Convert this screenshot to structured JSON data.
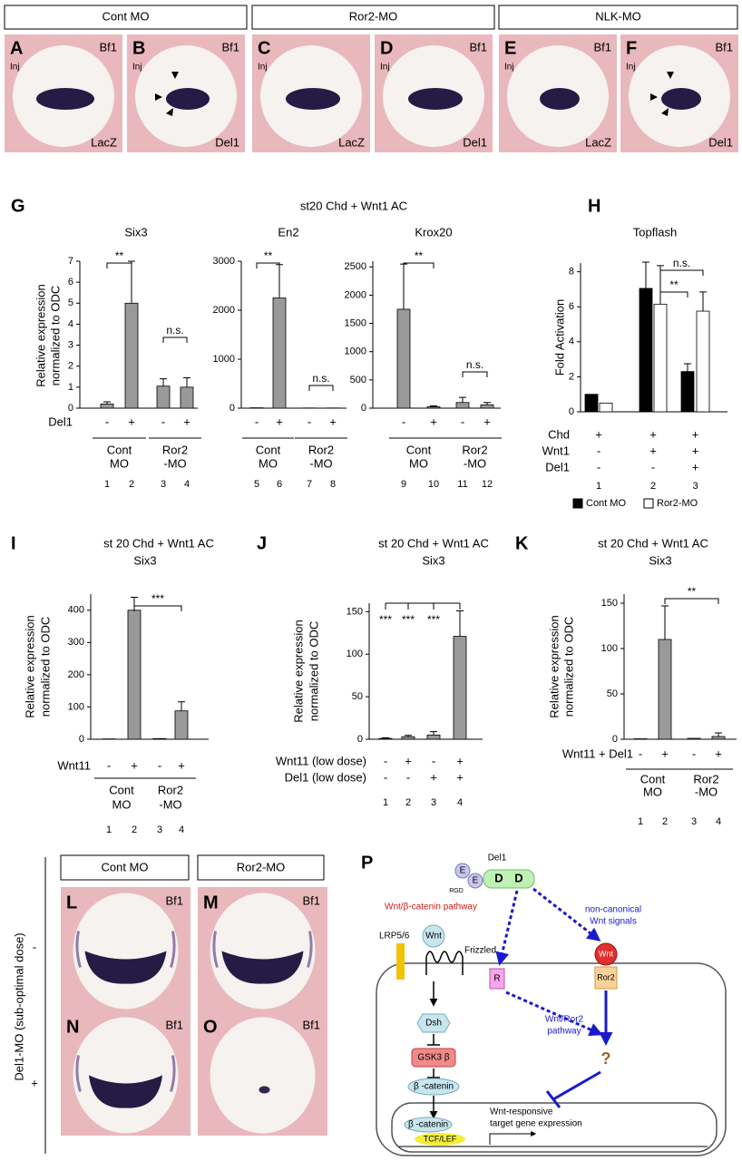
{
  "top_row": {
    "headers": [
      "Cont MO",
      "Ror2-MO",
      "NLK-MO"
    ],
    "panels": [
      {
        "letter": "A",
        "stain": "Bf1",
        "inj": "Inj",
        "probe": "LacZ"
      },
      {
        "letter": "B",
        "stain": "Bf1",
        "inj": "Inj",
        "probe": "Del1"
      },
      {
        "letter": "C",
        "inj": "Inj",
        "probe": "LacZ"
      },
      {
        "letter": "D",
        "stain": "Bf1",
        "inj": "Inj",
        "probe": "Del1"
      },
      {
        "letter": "E",
        "stain": "Bf1",
        "inj": "Inj",
        "probe": "LacZ"
      },
      {
        "letter": "F",
        "stain": "Bf1",
        "inj": "Inj",
        "probe": "Del1"
      }
    ]
  },
  "panel_g_title": "st20 Chd + Wnt1 AC",
  "chart_data": [
    {
      "type": "bar",
      "letter": "G",
      "title": "Six3",
      "ylabel": [
        "Relative expression",
        "normalized to ODC"
      ],
      "ylim": [
        0,
        7
      ],
      "yticks": [
        0,
        1,
        2,
        3,
        4,
        5,
        6,
        7
      ],
      "series": [
        {
          "color": "#999999",
          "values": [
            0.2,
            5,
            1.05,
            1
          ],
          "errors": [
            0.1,
            2,
            0.35,
            0.45
          ]
        }
      ],
      "rows": [
        {
          "label": "Del1",
          "signs": [
            "-",
            "+",
            "-",
            "+"
          ]
        }
      ],
      "groups": [
        [
          "Cont",
          "MO"
        ],
        [
          "Ror2",
          "-MO"
        ]
      ],
      "lanes": [
        1,
        2,
        3,
        4
      ],
      "significance": [
        "**",
        "n.s."
      ]
    },
    {
      "type": "bar",
      "title": "En2",
      "ylim": [
        0,
        3000
      ],
      "yticks": [
        0,
        1000,
        2000,
        3000
      ],
      "series": [
        {
          "color": "#999999",
          "values": [
            8,
            2250,
            4,
            4
          ],
          "errors": [
            0,
            680,
            0,
            0
          ]
        }
      ],
      "rows": [
        {
          "signs": [
            "-",
            "+",
            "-",
            "+"
          ]
        }
      ],
      "groups": [
        [
          "Cont",
          "MO"
        ],
        [
          "Ror2",
          "-MO"
        ]
      ],
      "lanes": [
        5,
        6,
        7,
        8
      ],
      "significance": [
        "**",
        "n.s."
      ]
    },
    {
      "type": "bar",
      "title": "Krox20",
      "ylim": [
        0,
        2600
      ],
      "yticks": [
        0,
        500,
        1000,
        1500,
        2000,
        2500
      ],
      "series": [
        {
          "color": "#999999",
          "values": [
            1750,
            25,
            100,
            60
          ],
          "errors": [
            800,
            15,
            90,
            40
          ]
        }
      ],
      "rows": [
        {
          "signs": [
            "-",
            "+",
            "-",
            "+"
          ]
        }
      ],
      "groups": [
        [
          "Cont",
          "MO"
        ],
        [
          "Ror2",
          "-MO"
        ]
      ],
      "lanes": [
        9,
        10,
        11,
        12
      ],
      "significance": [
        "**",
        "n.s."
      ]
    },
    {
      "type": "bar",
      "letter": "H",
      "title": "Topflash",
      "ylabel": [
        "Fold Activation"
      ],
      "ylim": [
        0,
        8.5
      ],
      "yticks": [
        0,
        2,
        4,
        6,
        8
      ],
      "series": [
        {
          "name": "Cont MO",
          "color": "#000000",
          "values": [
            1,
            7.05,
            2.3
          ],
          "errors": [
            0,
            1.5,
            0.45
          ]
        },
        {
          "name": "Ror2-MO",
          "color": "#ffffff",
          "values": [
            0.5,
            6.15,
            5.75
          ],
          "errors": [
            0,
            2.2,
            1.1
          ]
        }
      ],
      "rows": [
        {
          "label": "Chd",
          "signs": [
            "+",
            "+",
            "+"
          ]
        },
        {
          "label": "Wnt1",
          "signs": [
            "-",
            "+",
            "+"
          ]
        },
        {
          "label": "Del1",
          "signs": [
            "-",
            "-",
            "+"
          ]
        }
      ],
      "lanes": [
        1,
        2,
        3
      ],
      "significance": [
        "**",
        "n.s."
      ]
    },
    {
      "type": "bar",
      "letter": "I",
      "supertitle": "st 20 Chd + Wnt1 AC",
      "title": "Six3",
      "ylabel": [
        "Relative expression",
        "normalized to ODC"
      ],
      "ylim": [
        0,
        450
      ],
      "yticks": [
        0,
        100,
        200,
        300,
        400
      ],
      "series": [
        {
          "color": "#999999",
          "values": [
            1,
            400,
            2,
            88
          ],
          "errors": [
            0,
            40,
            0,
            28
          ]
        }
      ],
      "rows": [
        {
          "label": "Wnt11",
          "signs": [
            "-",
            "+",
            "-",
            "+"
          ]
        }
      ],
      "groups": [
        [
          "Cont",
          "MO"
        ],
        [
          "Ror2",
          "-MO"
        ]
      ],
      "lanes": [
        1,
        2,
        3,
        4
      ],
      "significance": [
        "***"
      ]
    },
    {
      "type": "bar",
      "letter": "J",
      "supertitle": "st 20 Chd + Wnt1 AC",
      "title": "Six3",
      "ylabel": [
        "Relative expression",
        "normalized to ODC"
      ],
      "ylim": [
        0,
        160
      ],
      "yticks": [
        0,
        50,
        100,
        150
      ],
      "series": [
        {
          "color": "#999999",
          "values": [
            1,
            3,
            5,
            121
          ],
          "errors": [
            0.8,
            1.5,
            4,
            30
          ]
        }
      ],
      "rows": [
        {
          "label": "Wnt11 (low dose)",
          "signs": [
            "-",
            "+",
            "-",
            "+"
          ]
        },
        {
          "label": "Del1 (low dose)",
          "signs": [
            "-",
            "-",
            "+",
            "+"
          ]
        }
      ],
      "lanes": [
        1,
        2,
        3,
        4
      ],
      "significance": [
        "***",
        "***",
        "***"
      ]
    },
    {
      "type": "bar",
      "letter": "K",
      "supertitle": "st 20 Chd + Wnt1 AC",
      "title": "Six3",
      "ylabel": [
        "Relative expression",
        "normalized to ODC"
      ],
      "ylim": [
        0,
        160
      ],
      "yticks": [
        0,
        50,
        100,
        150
      ],
      "series": [
        {
          "color": "#999999",
          "values": [
            0.5,
            110,
            1,
            3
          ],
          "errors": [
            0,
            37,
            0,
            4
          ]
        }
      ],
      "rows": [
        {
          "label": "Wnt11 + Del1",
          "signs": [
            "-",
            "+",
            "-",
            "+"
          ]
        }
      ],
      "groups": [
        [
          "Cont",
          "MO"
        ],
        [
          "Ror2",
          "-MO"
        ]
      ],
      "lanes": [
        1,
        2,
        3,
        4
      ],
      "significance": [
        "**"
      ]
    }
  ],
  "bottom_row": {
    "headers": [
      "Cont MO",
      "Ror2-MO"
    ],
    "side_label": "Del1-MO (sub-optimal dose)",
    "row_signs": [
      "-",
      "+"
    ],
    "panels": [
      {
        "letter": "L",
        "stain": "Bf1"
      },
      {
        "letter": "M",
        "stain": "Bf1"
      },
      {
        "letter": "N",
        "stain": "Bf1"
      },
      {
        "letter": "O",
        "stain": "Bf1"
      }
    ]
  },
  "diagram": {
    "letter": "P",
    "ligand": "Del1",
    "egf": [
      "E",
      "E"
    ],
    "rgd": "RGD",
    "discoidin": [
      "D",
      "D"
    ],
    "canonical_title": "Wnt/β-catenin pathway",
    "lrp": "LRP5/6",
    "wnt": "Wnt",
    "frizzled": "Frizzled",
    "noncanonical": [
      "non-canonical",
      "Wnt signals"
    ],
    "receptor": "R",
    "wnt2": "Wnt",
    "ror2": "Ror2",
    "dsh": "Dsh",
    "gsk": "GSK3 β",
    "bcat": "β -catenin",
    "ror_path": [
      "Wnt/Ror2",
      "pathway"
    ],
    "unknown": "?",
    "bcat_nuc": "β -catenin",
    "tcf": "TCF/LEF",
    "target": [
      "Wnt-responsive",
      "target gene expression"
    ]
  }
}
